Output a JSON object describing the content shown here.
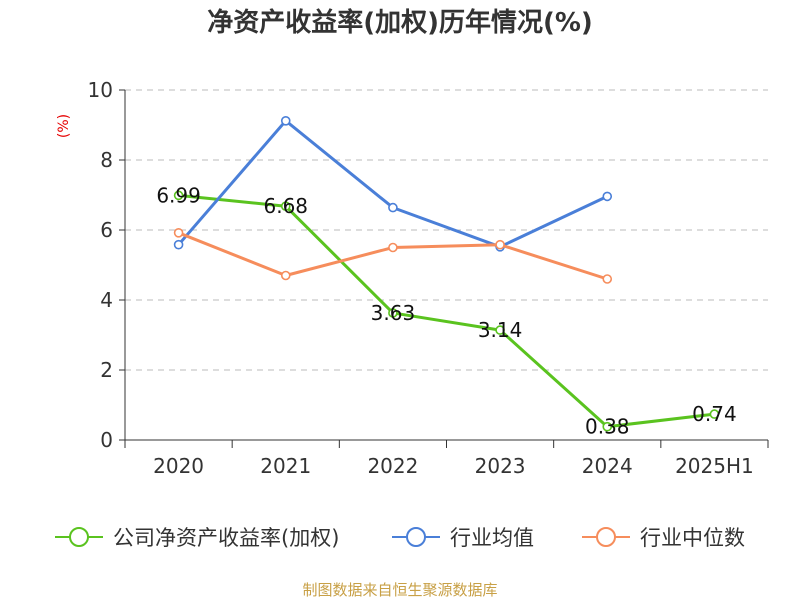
{
  "chart_data": {
    "type": "line",
    "title": "净资产收益率(加权)历年情况(%)",
    "ylabel": "(%)",
    "xlabel": "",
    "categories": [
      "2020",
      "2021",
      "2022",
      "2023",
      "2024",
      "2025H1"
    ],
    "ylim": [
      0,
      10
    ],
    "yticks": [
      0,
      2,
      4,
      6,
      8,
      10
    ],
    "grid": true,
    "legend_position": "bottom",
    "series": [
      {
        "name": "公司净资产收益率(加权)",
        "color": "#5ac31f",
        "values": [
          6.99,
          6.68,
          3.63,
          3.14,
          0.38,
          0.74
        ],
        "labels": [
          "6.99",
          "6.68",
          "3.63",
          "3.14",
          "0.38",
          "0.74"
        ],
        "show_labels": true
      },
      {
        "name": "行业均值",
        "color": "#4a7fd8",
        "values": [
          5.58,
          9.12,
          6.64,
          5.52,
          6.96,
          null
        ],
        "show_labels": false
      },
      {
        "name": "行业中位数",
        "color": "#f68d5c",
        "values": [
          5.92,
          4.7,
          5.5,
          5.58,
          4.6,
          null
        ],
        "show_labels": false
      }
    ],
    "source": "制图数据来自恒生聚源数据库"
  }
}
